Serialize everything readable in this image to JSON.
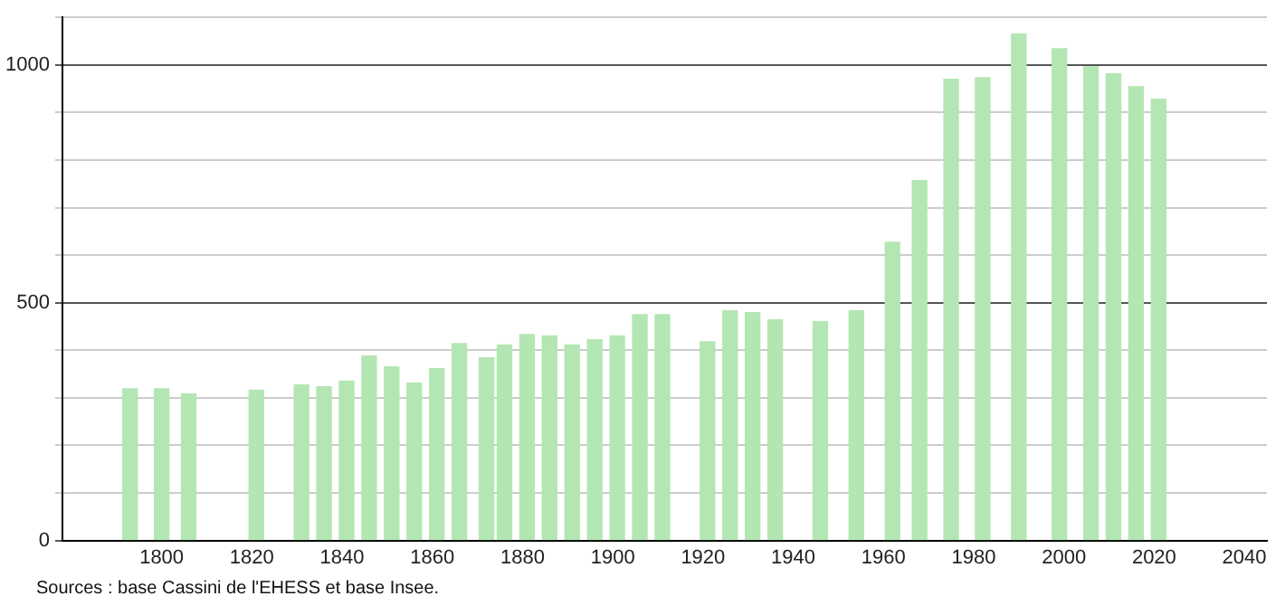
{
  "chart_data": {
    "type": "bar",
    "x": [
      1793,
      1800,
      1806,
      1821,
      1831,
      1836,
      1841,
      1846,
      1851,
      1856,
      1861,
      1866,
      1872,
      1876,
      1881,
      1886,
      1891,
      1896,
      1901,
      1906,
      1911,
      1921,
      1926,
      1931,
      1936,
      1946,
      1954,
      1962,
      1968,
      1975,
      1982,
      1990,
      1999,
      2006,
      2011,
      2016,
      2021
    ],
    "values": [
      319,
      319,
      308,
      316,
      327,
      323,
      335,
      388,
      365,
      331,
      361,
      414,
      384,
      411,
      433,
      430,
      411,
      422,
      430,
      475,
      475,
      418,
      483,
      479,
      464,
      460,
      483,
      627,
      757,
      970,
      973,
      1065,
      1034,
      996,
      981,
      954,
      928
    ],
    "color": "#b3e6b3",
    "xlim": [
      1778,
      2045
    ],
    "xticks": [
      1800,
      1820,
      1840,
      1860,
      1880,
      1900,
      1920,
      1940,
      1960,
      1980,
      2000,
      2020,
      2040
    ],
    "ylim": [
      0,
      1100
    ],
    "yticks": [
      0,
      {
        "value": 100,
        "label": null
      },
      {
        "value": 200,
        "label": null
      },
      {
        "value": 300,
        "label": null
      },
      {
        "value": 400,
        "label": null
      },
      500,
      {
        "value": 600,
        "label": null
      },
      {
        "value": 700,
        "label": null
      },
      {
        "value": 800,
        "label": null
      },
      {
        "value": 900,
        "label": null
      },
      1000,
      {
        "value": 1100,
        "label": null
      }
    ],
    "grid": "y",
    "annotations": [
      "Sources : base Cassini de l'EHESS et base Insee."
    ]
  }
}
